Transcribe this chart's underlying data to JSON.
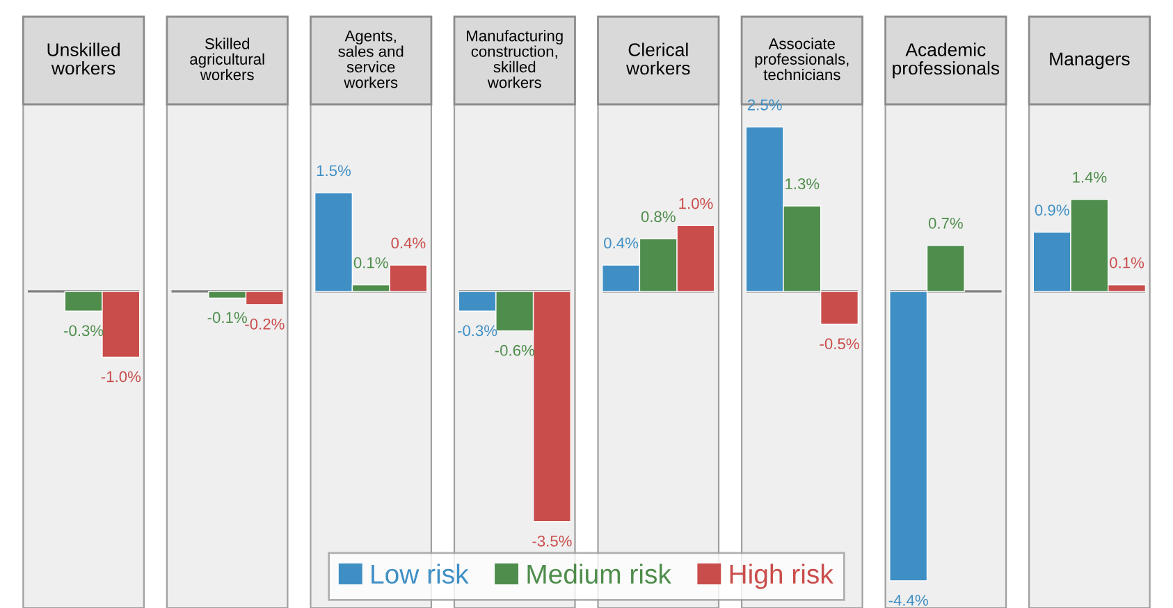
{
  "chart_data": {
    "type": "bar",
    "categories": [
      "Unskilled\nworkers",
      "Skilled\nagricultural\nworkers",
      "Agents,\nsales and\nservice\nworkers",
      "Manufacturing\nconstruction,\nskilled\nworkers",
      "Clerical\nworkers",
      "Associate\nprofessionals,\ntechnicians",
      "Academic\nprofessionals",
      "Managers"
    ],
    "series": [
      {
        "name": "Low risk",
        "color": "#3f8fc5",
        "values": [
          null,
          null,
          1.5,
          -0.3,
          0.4,
          2.5,
          -4.4,
          0.9
        ],
        "value_labels": [
          null,
          null,
          "1.5%",
          "-0.3%",
          "0.4%",
          "2.5%",
          "-4.4%",
          "0.9%"
        ]
      },
      {
        "name": "Medium risk",
        "color": "#4e8d4b",
        "values": [
          -0.3,
          -0.1,
          0.1,
          -0.6,
          0.8,
          1.3,
          0.7,
          1.4
        ],
        "value_labels": [
          "-0.3%",
          "-0.1%",
          "0.1%",
          "-0.6%",
          "0.8%",
          "1.3%",
          "0.7%",
          "1.4%"
        ]
      },
      {
        "name": "High risk",
        "color": "#c94d4b",
        "values": [
          -1.0,
          -0.2,
          0.4,
          -3.5,
          1.0,
          -0.5,
          null,
          0.1
        ],
        "value_labels": [
          "-1.0%",
          "-0.2%",
          "0.4%",
          "-3.5%",
          "1.0%",
          "-0.5%",
          null,
          "0.1%"
        ]
      }
    ],
    "ref_lines": [
      {
        "axis": "y",
        "value": 0,
        "color": "#808080"
      }
    ],
    "legend": "bottom"
  }
}
